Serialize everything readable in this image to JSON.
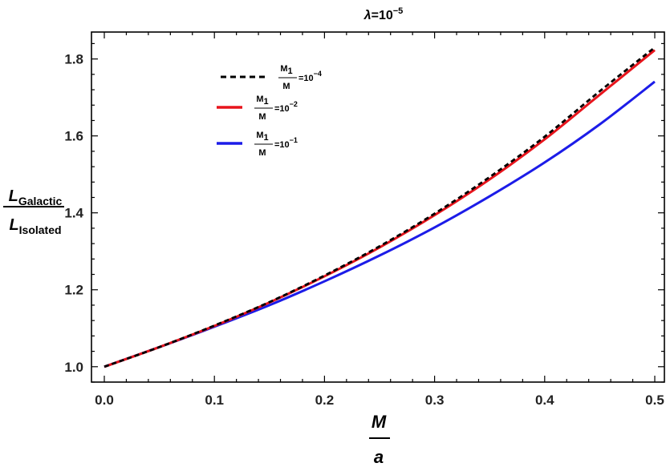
{
  "chart_data": {
    "type": "line",
    "title": "λ=10⁻⁵",
    "title_parts": {
      "lambda": "λ",
      "eq": "=10",
      "exp": "−5"
    },
    "xlabel": {
      "numerator": "M",
      "denominator": "a"
    },
    "ylabel": {
      "numerator": "L",
      "numerator_sub": "Galactic",
      "denominator": "L",
      "denominator_sub": "Isolated"
    },
    "xlim": [
      0.0,
      0.5
    ],
    "ylim": [
      0.96,
      1.87
    ],
    "xticks": [
      "0.0",
      "0.1",
      "0.2",
      "0.3",
      "0.4",
      "0.5"
    ],
    "yticks": [
      "1.0",
      "1.2",
      "1.4",
      "1.6",
      "1.8"
    ],
    "grid": false,
    "legend_position": "top-left",
    "x": [
      0.0,
      0.05,
      0.1,
      0.15,
      0.2,
      0.25,
      0.3,
      0.35,
      0.4,
      0.45,
      0.5
    ],
    "series": [
      {
        "name": "M1/M=10^-4",
        "label": {
          "num": "M",
          "num_sub": "1",
          "den": "M",
          "eq": "=10",
          "exp": "−4"
        },
        "color": "#000000",
        "style": "dashed",
        "values": [
          1.0,
          1.051,
          1.107,
          1.168,
          1.237,
          1.313,
          1.398,
          1.493,
          1.598,
          1.716,
          1.83
        ]
      },
      {
        "name": "M1/M=10^-2",
        "label": {
          "num": "M",
          "num_sub": "1",
          "den": "M",
          "eq": "=10",
          "exp": "−2"
        },
        "color": "#e8141c",
        "style": "solid",
        "values": [
          1.0,
          1.051,
          1.106,
          1.167,
          1.235,
          1.31,
          1.394,
          1.487,
          1.591,
          1.707,
          1.823
        ]
      },
      {
        "name": "M1/M=10^-1",
        "label": {
          "num": "M",
          "num_sub": "1",
          "den": "M",
          "eq": "=10",
          "exp": "−1"
        },
        "color": "#1c1ce8",
        "style": "solid",
        "values": [
          1.0,
          1.051,
          1.104,
          1.16,
          1.222,
          1.289,
          1.362,
          1.443,
          1.531,
          1.63,
          1.741
        ]
      }
    ]
  }
}
